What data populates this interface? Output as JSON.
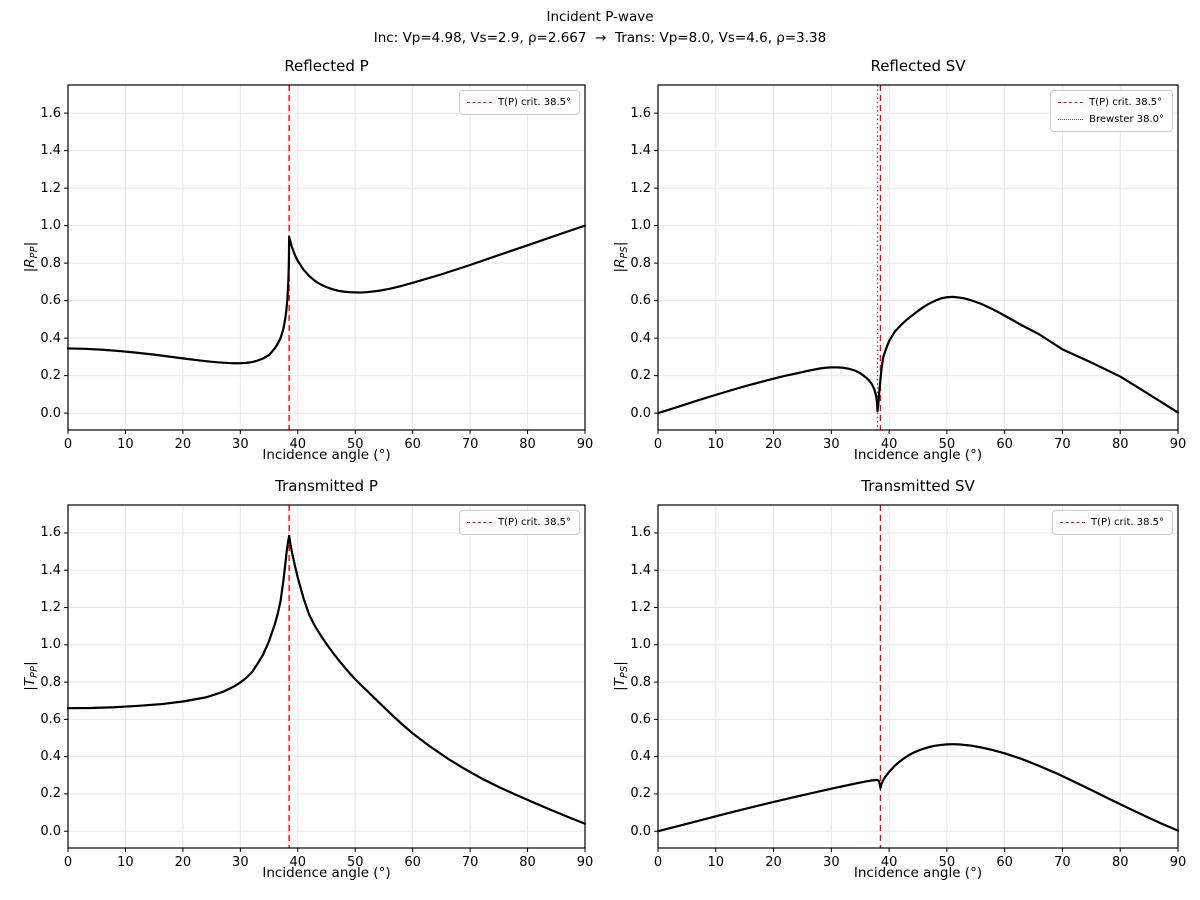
{
  "figure": {
    "suptitle_line1": "Incident P-wave",
    "suptitle_line2": "Inc: Vp=4.98, Vs=2.9, ρ=2.667  →  Trans: Vp=8.0, Vs=4.6, ρ=3.38",
    "background": "#ffffff",
    "text_color": "#000000"
  },
  "axes": {
    "xlim": [
      0,
      90
    ],
    "ylim": [
      -0.09,
      1.75
    ],
    "xtick_values": [
      0,
      10,
      20,
      30,
      40,
      50,
      60,
      70,
      80,
      90
    ],
    "xtick_labels": [
      "0",
      "10",
      "20",
      "30",
      "40",
      "50",
      "60",
      "70",
      "80",
      "90"
    ],
    "ytick_values": [
      0.0,
      0.2,
      0.4,
      0.6,
      0.8,
      1.0,
      1.2,
      1.4,
      1.6
    ],
    "ytick_labels": [
      "0.0",
      "0.2",
      "0.4",
      "0.6",
      "0.8",
      "1.0",
      "1.2",
      "1.4",
      "1.6"
    ],
    "grid": true,
    "grid_color": "#e7e7e7",
    "spine_color": "#000000",
    "curve_color": "#000000",
    "critical_color": "#ff0000",
    "brewster_color": "#4646c6"
  },
  "chart_data": [
    {
      "type": "line",
      "key": "rpp",
      "title": "Reflected P",
      "xlabel": "Incidence angle (°)",
      "ylabel": {
        "pre": "|",
        "main": "R",
        "sub": "PP",
        "post": "|"
      },
      "vlines": [
        {
          "x": 38.5,
          "label": "T(P) crit. 38.5°",
          "color": "#ff0000",
          "style": "dashed"
        }
      ],
      "series": [
        {
          "name": "|R_PP|",
          "color": "#000000",
          "x": [
            0,
            3,
            6,
            9,
            12,
            15,
            18,
            21,
            24,
            26,
            28,
            29,
            30,
            31,
            32,
            33,
            34,
            35,
            36,
            36.5,
            37,
            37.5,
            37.8,
            38,
            38.2,
            38.35,
            38.45,
            38.5,
            38.6,
            38.8,
            39,
            39.5,
            40,
            41,
            42,
            43,
            44,
            45,
            46,
            47,
            48,
            49,
            50,
            51,
            52,
            54,
            56,
            58,
            60,
            65,
            70,
            75,
            80,
            85,
            90
          ],
          "y": [
            0.345,
            0.343,
            0.338,
            0.331,
            0.322,
            0.312,
            0.3,
            0.288,
            0.277,
            0.271,
            0.267,
            0.266,
            0.266,
            0.268,
            0.272,
            0.28,
            0.292,
            0.31,
            0.345,
            0.37,
            0.4,
            0.45,
            0.5,
            0.545,
            0.615,
            0.7,
            0.8,
            0.94,
            0.928,
            0.905,
            0.884,
            0.843,
            0.812,
            0.765,
            0.731,
            0.705,
            0.686,
            0.672,
            0.661,
            0.653,
            0.648,
            0.645,
            0.644,
            0.643,
            0.645,
            0.652,
            0.663,
            0.678,
            0.695,
            0.74,
            0.79,
            0.843,
            0.895,
            0.948,
            1.0
          ]
        }
      ]
    },
    {
      "type": "line",
      "key": "rps",
      "title": "Reflected SV",
      "xlabel": "Incidence angle (°)",
      "ylabel": {
        "pre": "|",
        "main": "R",
        "sub": "PS",
        "post": "|"
      },
      "vlines": [
        {
          "x": 38.5,
          "label": "T(P) crit. 38.5°",
          "color": "#ff0000",
          "style": "dashed"
        },
        {
          "x": 38.0,
          "label": "Brewster 38.0°",
          "color": "#4646c6",
          "style": "dotted"
        }
      ],
      "series": [
        {
          "name": "|R_PS|",
          "color": "#000000",
          "x": [
            0,
            3,
            6,
            9,
            12,
            15,
            18,
            20,
            22,
            24,
            25,
            26,
            27,
            28,
            29,
            30,
            31,
            32,
            33,
            34,
            35,
            36,
            36.5,
            37,
            37.4,
            37.7,
            37.9,
            38,
            38.15,
            38.3,
            38.5,
            38.7,
            39,
            39.5,
            40,
            41,
            42,
            43,
            44,
            45,
            46,
            47,
            48,
            49,
            50,
            51,
            52,
            53,
            54,
            56,
            58,
            60,
            63,
            66,
            70,
            75,
            80,
            85,
            90
          ],
          "y": [
            0,
            0.029,
            0.059,
            0.088,
            0.116,
            0.143,
            0.168,
            0.184,
            0.199,
            0.212,
            0.219,
            0.226,
            0.232,
            0.238,
            0.242,
            0.244,
            0.244,
            0.242,
            0.237,
            0.228,
            0.213,
            0.19,
            0.175,
            0.155,
            0.13,
            0.1,
            0.06,
            0.01,
            0.055,
            0.115,
            0.18,
            0.24,
            0.3,
            0.345,
            0.385,
            0.435,
            0.468,
            0.497,
            0.521,
            0.545,
            0.567,
            0.585,
            0.6,
            0.612,
            0.618,
            0.62,
            0.617,
            0.612,
            0.604,
            0.582,
            0.553,
            0.52,
            0.468,
            0.42,
            0.34,
            0.27,
            0.195,
            0.1,
            0.003
          ]
        }
      ]
    },
    {
      "type": "line",
      "key": "tpp",
      "title": "Transmitted P",
      "xlabel": "Incidence angle (°)",
      "ylabel": {
        "pre": "|",
        "main": "T",
        "sub": "PP",
        "post": "|"
      },
      "vlines": [
        {
          "x": 38.5,
          "label": "T(P) crit. 38.5°",
          "color": "#ff0000",
          "style": "dashed"
        }
      ],
      "series": [
        {
          "name": "|T_PP|",
          "color": "#000000",
          "x": [
            0,
            4,
            8,
            12,
            16,
            20,
            24,
            27,
            29,
            30,
            31,
            32,
            33,
            34,
            35,
            36,
            36.5,
            37,
            37.5,
            37.8,
            38.1,
            38.3,
            38.5,
            38.8,
            39,
            39.5,
            40,
            41,
            42,
            43,
            44,
            45,
            46,
            47,
            48,
            49,
            50,
            52,
            54,
            56,
            58,
            60,
            63,
            66,
            69,
            72,
            75,
            78,
            81,
            84,
            87,
            90
          ],
          "y": [
            0.66,
            0.661,
            0.665,
            0.672,
            0.681,
            0.696,
            0.718,
            0.748,
            0.778,
            0.798,
            0.822,
            0.852,
            0.898,
            0.95,
            1.02,
            1.11,
            1.165,
            1.235,
            1.345,
            1.425,
            1.51,
            1.55,
            1.585,
            1.525,
            1.495,
            1.425,
            1.36,
            1.25,
            1.16,
            1.1,
            1.05,
            1.005,
            0.962,
            0.922,
            0.885,
            0.849,
            0.815,
            0.755,
            0.695,
            0.635,
            0.578,
            0.525,
            0.455,
            0.392,
            0.335,
            0.283,
            0.237,
            0.195,
            0.155,
            0.115,
            0.077,
            0.04
          ]
        }
      ]
    },
    {
      "type": "line",
      "key": "tps",
      "title": "Transmitted SV",
      "xlabel": "Incidence angle (°)",
      "ylabel": {
        "pre": "|",
        "main": "T",
        "sub": "PS",
        "post": "|"
      },
      "vlines": [
        {
          "x": 38.5,
          "label": "T(P) crit. 38.5°",
          "color": "#ff0000",
          "style": "dashed"
        }
      ],
      "series": [
        {
          "name": "|T_PS|",
          "color": "#000000",
          "x": [
            0,
            4,
            8,
            12,
            16,
            20,
            24,
            28,
            31,
            33,
            35,
            36,
            37,
            37.5,
            38,
            38.2,
            38.35,
            38.5,
            38.7,
            39,
            39.3,
            39.7,
            40,
            41,
            42,
            43,
            44,
            45,
            46,
            47,
            48,
            49,
            50,
            51,
            52,
            54,
            56,
            58,
            60,
            63,
            66,
            69,
            72,
            75,
            78,
            81,
            84,
            87,
            90
          ],
          "y": [
            0,
            0.032,
            0.064,
            0.096,
            0.127,
            0.157,
            0.186,
            0.214,
            0.235,
            0.248,
            0.261,
            0.267,
            0.272,
            0.274,
            0.275,
            0.27,
            0.258,
            0.232,
            0.255,
            0.275,
            0.29,
            0.307,
            0.318,
            0.352,
            0.378,
            0.4,
            0.418,
            0.432,
            0.443,
            0.452,
            0.459,
            0.463,
            0.466,
            0.467,
            0.466,
            0.46,
            0.449,
            0.435,
            0.418,
            0.387,
            0.35,
            0.31,
            0.266,
            0.221,
            0.175,
            0.13,
            0.086,
            0.043,
            0.003
          ]
        }
      ]
    }
  ]
}
